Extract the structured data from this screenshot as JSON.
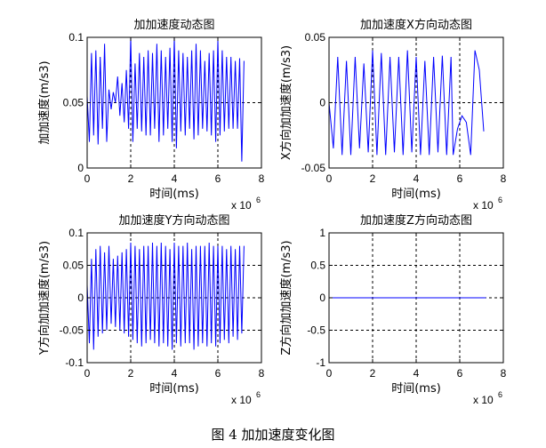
{
  "caption": "图 4  加加速度变化图",
  "chart_data": [
    {
      "type": "line",
      "title": "加加速度动态图",
      "xlabel": "时间(ms)",
      "ylabel": "加加速度(m/s3)",
      "x_multiplier": "x 10",
      "x_multiplier_exp": "6",
      "xlim": [
        0,
        8
      ],
      "ylim": [
        0,
        0.1
      ],
      "xticks": [
        0,
        2,
        4,
        6,
        8
      ],
      "yticks": [
        0,
        0.05,
        0.1
      ],
      "xtick_labels": [
        "0",
        "2",
        "4",
        "6",
        "8"
      ],
      "ytick_labels": [
        "0",
        "0.05",
        "0.1"
      ],
      "grid": true,
      "series": [
        {
          "color": "#0000ff",
          "x": [
            0.0,
            0.1,
            0.2,
            0.3,
            0.4,
            0.5,
            0.6,
            0.7,
            0.8,
            0.9,
            1.0,
            1.1,
            1.2,
            1.3,
            1.4,
            1.5,
            1.6,
            1.7,
            1.8,
            1.9,
            2.0,
            2.1,
            2.2,
            2.3,
            2.4,
            2.5,
            2.6,
            2.7,
            2.8,
            2.9,
            3.0,
            3.1,
            3.2,
            3.3,
            3.4,
            3.5,
            3.6,
            3.7,
            3.8,
            3.9,
            4.0,
            4.1,
            4.2,
            4.3,
            4.4,
            4.5,
            4.6,
            4.7,
            4.8,
            4.9,
            5.0,
            5.1,
            5.2,
            5.3,
            5.4,
            5.5,
            5.6,
            5.7,
            5.8,
            5.9,
            6.0,
            6.1,
            6.2,
            6.3,
            6.4,
            6.5,
            6.6,
            6.7,
            6.8,
            6.9,
            7.0,
            7.1,
            7.2
          ],
          "y": [
            0.055,
            0.02,
            0.088,
            0.025,
            0.09,
            0.018,
            0.085,
            0.03,
            0.095,
            0.02,
            0.06,
            0.045,
            0.058,
            0.05,
            0.07,
            0.04,
            0.065,
            0.035,
            0.075,
            0.03,
            0.1,
            0.02,
            0.08,
            0.03,
            0.088,
            0.028,
            0.085,
            0.025,
            0.09,
            0.025,
            0.088,
            0.03,
            0.095,
            0.02,
            0.09,
            0.025,
            0.085,
            0.03,
            0.092,
            0.02,
            0.1,
            0.015,
            0.09,
            0.028,
            0.088,
            0.025,
            0.085,
            0.03,
            0.09,
            0.022,
            0.095,
            0.025,
            0.09,
            0.03,
            0.082,
            0.028,
            0.088,
            0.025,
            0.09,
            0.02,
            0.098,
            0.025,
            0.09,
            0.028,
            0.085,
            0.03,
            0.085,
            0.03,
            0.082,
            0.03,
            0.084,
            0.005,
            0.082
          ]
        }
      ]
    },
    {
      "type": "line",
      "title": "加加速度X方向动态图",
      "xlabel": "时间(ms)",
      "ylabel": "X方向加加速度(m/s3)",
      "x_multiplier": "x 10",
      "x_multiplier_exp": "6",
      "xlim": [
        0,
        8
      ],
      "ylim": [
        -0.05,
        0.05
      ],
      "xticks": [
        0,
        2,
        4,
        6,
        8
      ],
      "yticks": [
        -0.05,
        0,
        0.05
      ],
      "xtick_labels": [
        "0",
        "2",
        "4",
        "6",
        "8"
      ],
      "ytick_labels": [
        "-0.05",
        "0",
        "0.05"
      ],
      "grid": true,
      "series": [
        {
          "color": "#0000ff",
          "x": [
            0.0,
            0.2,
            0.4,
            0.6,
            0.8,
            1.0,
            1.2,
            1.4,
            1.6,
            1.8,
            2.0,
            2.2,
            2.4,
            2.6,
            2.8,
            3.0,
            3.2,
            3.4,
            3.6,
            3.8,
            4.0,
            4.2,
            4.4,
            4.6,
            4.8,
            5.0,
            5.2,
            5.4,
            5.6,
            5.7,
            5.9,
            6.1,
            6.3,
            6.5,
            6.7,
            6.9,
            7.1
          ],
          "y": [
            0.0,
            -0.035,
            0.035,
            -0.04,
            0.032,
            -0.04,
            0.035,
            -0.035,
            0.03,
            -0.038,
            0.04,
            -0.04,
            0.038,
            -0.04,
            0.035,
            -0.038,
            0.035,
            -0.04,
            0.04,
            -0.038,
            0.035,
            -0.04,
            0.032,
            -0.04,
            0.035,
            -0.038,
            0.036,
            -0.04,
            0.035,
            -0.04,
            -0.02,
            -0.01,
            -0.015,
            -0.04,
            0.04,
            0.025,
            -0.022
          ]
        }
      ]
    },
    {
      "type": "line",
      "title": "加加速度Y方向动态图",
      "xlabel": "时间(ms)",
      "ylabel": "Y方向加加速度(m/s3)",
      "x_multiplier": "x 10",
      "x_multiplier_exp": "6",
      "xlim": [
        0,
        8
      ],
      "ylim": [
        -0.1,
        0.1
      ],
      "xticks": [
        0,
        2,
        4,
        6,
        8
      ],
      "yticks": [
        -0.1,
        -0.05,
        0,
        0.05,
        0.1
      ],
      "xtick_labels": [
        "0",
        "2",
        "4",
        "6",
        "8"
      ],
      "ytick_labels": [
        "-0.1",
        "-0.05",
        "0",
        "0.05",
        "0.1"
      ],
      "grid": true,
      "series": [
        {
          "color": "#0000ff",
          "x": [
            0.0,
            0.1,
            0.2,
            0.3,
            0.4,
            0.5,
            0.6,
            0.7,
            0.8,
            0.9,
            1.0,
            1.1,
            1.2,
            1.3,
            1.4,
            1.5,
            1.6,
            1.7,
            1.8,
            1.9,
            2.0,
            2.1,
            2.2,
            2.3,
            2.4,
            2.5,
            2.6,
            2.7,
            2.8,
            2.9,
            3.0,
            3.1,
            3.2,
            3.3,
            3.4,
            3.5,
            3.6,
            3.7,
            3.8,
            3.9,
            4.0,
            4.1,
            4.2,
            4.3,
            4.4,
            4.5,
            4.6,
            4.7,
            4.8,
            4.9,
            5.0,
            5.1,
            5.2,
            5.3,
            5.4,
            5.5,
            5.6,
            5.7,
            5.8,
            5.9,
            6.0,
            6.1,
            6.2,
            6.3,
            6.4,
            6.5,
            6.6,
            6.7,
            6.8,
            6.9,
            7.0,
            7.1,
            7.2
          ],
          "y": [
            0.02,
            -0.07,
            0.06,
            -0.08,
            0.075,
            -0.06,
            0.08,
            -0.055,
            0.07,
            -0.05,
            0.08,
            -0.04,
            0.06,
            -0.045,
            0.065,
            -0.05,
            0.07,
            -0.055,
            0.075,
            -0.06,
            0.085,
            -0.065,
            0.08,
            -0.07,
            0.075,
            -0.075,
            0.08,
            -0.07,
            0.08,
            -0.065,
            0.085,
            -0.07,
            0.08,
            -0.075,
            0.085,
            -0.07,
            0.08,
            -0.075,
            0.075,
            -0.08,
            0.085,
            -0.07,
            0.08,
            -0.075,
            0.08,
            -0.07,
            0.085,
            -0.07,
            0.075,
            -0.08,
            0.08,
            -0.075,
            0.08,
            -0.07,
            0.08,
            -0.075,
            0.085,
            -0.07,
            0.08,
            -0.075,
            0.08,
            -0.07,
            0.08,
            -0.065,
            0.075,
            -0.07,
            0.08,
            -0.06,
            0.075,
            -0.065,
            0.08,
            -0.055,
            0.08
          ]
        }
      ]
    },
    {
      "type": "line",
      "title": "加加速度Z方向动态图",
      "xlabel": "时间(ms)",
      "ylabel": "Z方向加加速度(m/s3)",
      "x_multiplier": "x 10",
      "x_multiplier_exp": "6",
      "xlim": [
        0,
        8
      ],
      "ylim": [
        -1,
        1
      ],
      "xticks": [
        0,
        2,
        4,
        6,
        8
      ],
      "yticks": [
        -1,
        -0.5,
        0,
        0.5,
        1
      ],
      "xtick_labels": [
        "0",
        "2",
        "4",
        "6",
        "8"
      ],
      "ytick_labels": [
        "-1",
        "-0.5",
        "0",
        "0.5",
        "1"
      ],
      "grid": true,
      "series": [
        {
          "color": "#0000ff",
          "x": [
            0.0,
            7.2
          ],
          "y": [
            0.0,
            0.0
          ]
        }
      ]
    }
  ]
}
